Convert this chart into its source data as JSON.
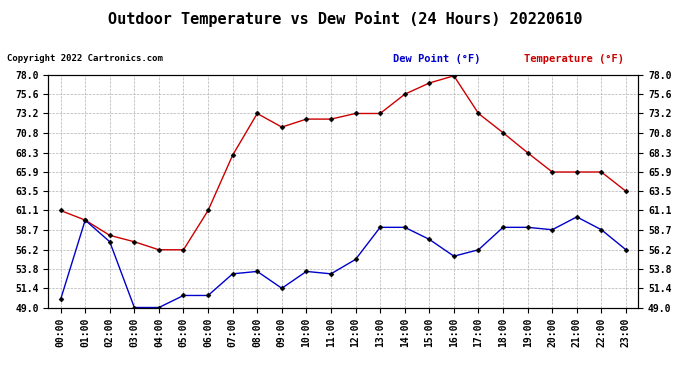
{
  "title": "Outdoor Temperature vs Dew Point (24 Hours) 20220610",
  "copyright": "Copyright 2022 Cartronics.com",
  "legend_dew": "Dew Point (°F)",
  "legend_temp": "Temperature (°F)",
  "x_labels": [
    "00:00",
    "01:00",
    "02:00",
    "03:00",
    "04:00",
    "05:00",
    "06:00",
    "07:00",
    "08:00",
    "09:00",
    "10:00",
    "11:00",
    "12:00",
    "13:00",
    "14:00",
    "15:00",
    "16:00",
    "17:00",
    "18:00",
    "19:00",
    "20:00",
    "21:00",
    "22:00",
    "23:00"
  ],
  "temperature": [
    61.1,
    59.9,
    58.0,
    57.2,
    56.2,
    56.2,
    61.1,
    68.0,
    73.2,
    71.5,
    72.5,
    72.5,
    73.2,
    73.2,
    75.6,
    77.0,
    77.9,
    73.2,
    70.8,
    68.3,
    65.9,
    65.9,
    65.9,
    63.5
  ],
  "dew_point": [
    50.0,
    59.9,
    57.2,
    49.0,
    49.0,
    50.5,
    50.5,
    53.2,
    53.5,
    51.4,
    53.5,
    53.2,
    55.0,
    59.0,
    59.0,
    57.5,
    55.4,
    56.2,
    59.0,
    59.0,
    58.7,
    60.3,
    58.7,
    56.2
  ],
  "ylim_min": 49.0,
  "ylim_max": 78.0,
  "y_ticks": [
    49.0,
    51.4,
    53.8,
    56.2,
    58.7,
    61.1,
    63.5,
    65.9,
    68.3,
    70.8,
    73.2,
    75.6,
    78.0
  ],
  "temp_color": "#cc0000",
  "dew_color": "#0000cc",
  "bg_color": "#ffffff",
  "grid_color": "#aaaaaa",
  "title_fontsize": 11,
  "label_fontsize": 7,
  "copyright_fontsize": 6.5
}
